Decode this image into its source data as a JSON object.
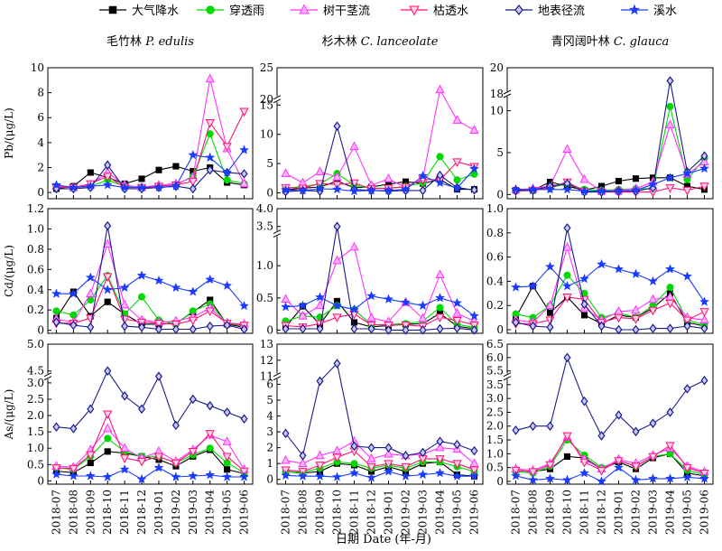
{
  "chart_data": {
    "type": "line",
    "legend": {
      "placement": "top",
      "entries": [
        {
          "key": "atm",
          "label": "大气降水",
          "color": "#000000",
          "marker": "square"
        },
        {
          "key": "thr",
          "label": "穿透雨",
          "color": "#00d800",
          "marker": "circle"
        },
        {
          "key": "stem",
          "label": "树干茎流",
          "color": "#ff33ff",
          "marker": "triangle-up"
        },
        {
          "key": "lit",
          "label": "枯透水",
          "color": "#ff1177",
          "marker": "triangle-down"
        },
        {
          "key": "sur",
          "label": "地表径流",
          "color": "#1a1a8c",
          "marker": "diamond"
        },
        {
          "key": "str",
          "label": "溪水",
          "color": "#1b3bff",
          "marker": "star"
        }
      ]
    },
    "x_categories": [
      "2018-07",
      "2018-08",
      "2018-09",
      "2018-10",
      "2018-11",
      "2018-12",
      "2019-01",
      "2019-02",
      "2019-03",
      "2019-04",
      "2019-05",
      "2019-06"
    ],
    "x_axis_label": "日期 Date (年-月)",
    "columns": [
      {
        "title_cn": "毛竹林",
        "title_latin": "P. edulis"
      },
      {
        "title_cn": "杉木林",
        "title_latin": "C. lanceolate"
      },
      {
        "title_cn": "青冈阔叶林",
        "title_latin": "C. glauca"
      }
    ],
    "rows": [
      {
        "ylabel": "Pb/(μg/L)"
      },
      {
        "ylabel": "Cd/(μg/L)"
      },
      {
        "ylabel": "As/(μg/L)"
      }
    ],
    "panels": [
      {
        "row": 0,
        "col": 0,
        "ylim": [
          -0.5,
          10
        ],
        "ticks": [
          0,
          2,
          4,
          6,
          8,
          10
        ],
        "tick_labels": [
          "0",
          "2",
          "4",
          "6",
          "8",
          "10"
        ],
        "series": {
          "atm": [
            0.3,
            0.5,
            1.6,
            1.2,
            0.7,
            1.1,
            1.8,
            2.1,
            1.7,
            2.0,
            0.8,
            0.6
          ],
          "thr": [
            0.5,
            0.4,
            0.5,
            1.0,
            0.5,
            0.4,
            0.5,
            0.6,
            1.3,
            4.7,
            1.0,
            0.7
          ],
          "stem": [
            0.5,
            0.4,
            0.6,
            1.6,
            0.6,
            0.4,
            0.6,
            0.7,
            1.2,
            9.1,
            3.5,
            0.7
          ],
          "lit": [
            0.4,
            0.4,
            0.7,
            1.3,
            0.4,
            0.4,
            0.5,
            0.6,
            0.9,
            5.6,
            3.7,
            6.5
          ],
          "sur": [
            0.3,
            0.3,
            0.4,
            2.2,
            0.3,
            0.3,
            0.4,
            0.5,
            0.3,
            1.8,
            1.6,
            1.5
          ],
          "str": [
            0.6,
            0.4,
            0.5,
            0.6,
            0.4,
            0.4,
            0.4,
            0.5,
            3.0,
            2.8,
            1.6,
            3.4
          ]
        }
      },
      {
        "row": 0,
        "col": 1,
        "ylim": [
          -1,
          25
        ],
        "ticks": [
          0,
          5,
          10,
          15,
          20,
          25
        ],
        "tick_labels": [
          "0",
          "5",
          "10",
          "15",
          "20",
          "25"
        ],
        "break": {
          "lo": 16,
          "hi": 20,
          "frac": 0.76
        },
        "series": {
          "atm": [
            0.5,
            0.8,
            1.0,
            2.0,
            0.9,
            1.0,
            1.5,
            1.9,
            1.6,
            2.3,
            0.6,
            0.6
          ],
          "thr": [
            0.8,
            1.1,
            1.5,
            3.3,
            1.3,
            0.8,
            0.8,
            1.1,
            1.7,
            6.2,
            2.2,
            3.2
          ],
          "stem": [
            3.3,
            1.7,
            3.6,
            2.7,
            7.9,
            1.3,
            2.4,
            0.9,
            2.4,
            21.5,
            12.4,
            10.7
          ],
          "lit": [
            0.9,
            0.8,
            1.6,
            1.4,
            1.7,
            0.7,
            0.8,
            1.0,
            2.3,
            2.2,
            5.3,
            4.5
          ],
          "sur": [
            0.2,
            0.4,
            0.3,
            11.4,
            0.6,
            0.4,
            0.3,
            0.4,
            0.4,
            3.0,
            0.9,
            0.5
          ],
          "str": [
            0.5,
            0.4,
            0.7,
            0.6,
            0.3,
            0.4,
            0.4,
            0.6,
            2.9,
            1.7,
            0.8,
            4.1
          ]
        }
      },
      {
        "row": 0,
        "col": 2,
        "ylim": [
          -0.5,
          20
        ],
        "ticks": [
          0,
          5,
          10,
          18,
          20
        ],
        "tick_labels": [
          "0",
          "5",
          "10",
          "18",
          "20"
        ],
        "break": {
          "lo": 12,
          "hi": 18,
          "frac": 0.8
        },
        "series": {
          "atm": [
            0.5,
            0.5,
            1.5,
            1.0,
            0.5,
            1.0,
            1.6,
            1.9,
            2.0,
            2.0,
            1.0,
            0.6
          ],
          "thr": [
            0.5,
            0.5,
            0.8,
            1.3,
            0.6,
            0.5,
            0.6,
            0.7,
            0.7,
            10.5,
            1.8,
            4.3
          ],
          "stem": [
            0.6,
            0.7,
            1.0,
            5.4,
            1.8,
            0.4,
            0.5,
            0.7,
            1.5,
            8.3,
            2.4,
            3.9
          ],
          "lit": [
            0.4,
            0.5,
            0.8,
            1.5,
            0.4,
            0.3,
            0.3,
            0.3,
            0.3,
            0.8,
            0.5,
            1.0
          ],
          "sur": [
            0.5,
            0.5,
            1.0,
            1.3,
            0.3,
            0.3,
            0.4,
            0.4,
            0.8,
            19.0,
            2.7,
            4.6
          ],
          "str": [
            0.6,
            0.6,
            0.6,
            0.6,
            0.4,
            0.4,
            0.4,
            0.5,
            1.2,
            2.0,
            2.5,
            3.1
          ]
        }
      },
      {
        "row": 1,
        "col": 0,
        "ylim": [
          -0.03,
          1.2
        ],
        "ticks": [
          0,
          0.2,
          0.4,
          0.6,
          0.8,
          1.0,
          1.2
        ],
        "tick_labels": [
          "0",
          "0.2",
          "0.4",
          "0.6",
          "0.8",
          "1.0",
          "1.2"
        ],
        "series": {
          "atm": [
            0.12,
            0.38,
            0.14,
            0.28,
            0.16,
            0.06,
            0.06,
            0.07,
            0.18,
            0.3,
            0.06,
            0.03
          ],
          "thr": [
            0.19,
            0.15,
            0.3,
            0.54,
            0.16,
            0.33,
            0.1,
            0.06,
            0.19,
            0.26,
            0.07,
            0.04
          ],
          "stem": [
            0.11,
            0.08,
            0.36,
            0.85,
            0.25,
            0.1,
            0.08,
            0.09,
            0.13,
            0.22,
            0.07,
            0.06
          ],
          "lit": [
            0.07,
            0.07,
            0.12,
            0.53,
            0.11,
            0.08,
            0.07,
            0.06,
            0.1,
            0.19,
            0.07,
            0.05
          ],
          "sur": [
            0.08,
            0.05,
            0.03,
            1.03,
            0.04,
            0.03,
            0.01,
            0.01,
            0.01,
            0.04,
            0.05,
            0.01
          ],
          "str": [
            0.36,
            0.36,
            0.52,
            0.4,
            0.42,
            0.54,
            0.49,
            0.42,
            0.38,
            0.5,
            0.44,
            0.24
          ]
        }
      },
      {
        "row": 1,
        "col": 1,
        "ylim": [
          -0.05,
          4.0
        ],
        "ticks": [
          0,
          0.5,
          1.0,
          3.5,
          4.0
        ],
        "tick_labels": [
          "0",
          "0.5",
          "1.0",
          "3.5",
          "4.0"
        ],
        "break": {
          "lo": 1.5,
          "hi": 3.3,
          "frac": 0.8
        },
        "series": {
          "atm": [
            0.05,
            0.37,
            0.09,
            0.45,
            0.12,
            0.05,
            0.07,
            0.09,
            0.1,
            0.26,
            0.06,
            0.02
          ],
          "thr": [
            0.14,
            0.22,
            0.2,
            0.38,
            0.32,
            0.08,
            0.09,
            0.1,
            0.14,
            0.35,
            0.09,
            0.04
          ],
          "stem": [
            0.48,
            0.22,
            0.38,
            1.08,
            1.29,
            0.19,
            0.13,
            0.43,
            0.18,
            0.86,
            0.26,
            0.14
          ],
          "lit": [
            0.07,
            0.05,
            0.1,
            0.2,
            0.25,
            0.08,
            0.08,
            0.08,
            0.06,
            0.2,
            0.15,
            0.08
          ],
          "sur": [
            0.02,
            0.02,
            0.02,
            3.5,
            0.02,
            0.02,
            0.0,
            0.0,
            0.0,
            0.02,
            0.03,
            0.0
          ],
          "str": [
            0.36,
            0.38,
            0.51,
            0.38,
            0.32,
            0.53,
            0.48,
            0.43,
            0.38,
            0.5,
            0.42,
            0.22
          ]
        }
      },
      {
        "row": 1,
        "col": 2,
        "ylim": [
          -0.03,
          1.0
        ],
        "ticks": [
          0,
          0.2,
          0.4,
          0.6,
          0.8,
          1.0
        ],
        "tick_labels": [
          "0",
          "0.2",
          "0.4",
          "0.6",
          "0.8",
          "1.0"
        ],
        "series": {
          "atm": [
            0.1,
            0.36,
            0.14,
            0.27,
            0.12,
            0.05,
            0.12,
            0.1,
            0.18,
            0.3,
            0.06,
            0.03
          ],
          "thr": [
            0.13,
            0.1,
            0.2,
            0.45,
            0.3,
            0.1,
            0.14,
            0.1,
            0.2,
            0.35,
            0.08,
            0.04
          ],
          "stem": [
            0.08,
            0.06,
            0.2,
            0.68,
            0.18,
            0.08,
            0.15,
            0.16,
            0.25,
            0.27,
            0.1,
            0.08
          ],
          "lit": [
            0.05,
            0.05,
            0.08,
            0.27,
            0.25,
            0.06,
            0.1,
            0.09,
            0.16,
            0.22,
            0.08,
            0.15
          ],
          "sur": [
            0.06,
            0.03,
            0.02,
            0.84,
            0.21,
            0.03,
            0.0,
            0.0,
            0.01,
            0.01,
            0.03,
            0.01
          ],
          "str": [
            0.35,
            0.36,
            0.52,
            0.36,
            0.42,
            0.54,
            0.5,
            0.46,
            0.4,
            0.5,
            0.44,
            0.23
          ]
        }
      },
      {
        "row": 2,
        "col": 0,
        "ylim": [
          -0.1,
          5.0
        ],
        "ticks": [
          0,
          0.5,
          1.0,
          1.5,
          2.0,
          2.5,
          3.0,
          4.5,
          5.0
        ],
        "tick_labels": [
          "0",
          "0.5",
          "1.0",
          "1.5",
          "2.0",
          "2.5",
          "3.0",
          "4.5",
          "5.0"
        ],
        "break": {
          "lo": 3.2,
          "hi": 4.4,
          "frac": 0.77
        },
        "series": {
          "atm": [
            0.3,
            0.25,
            0.55,
            0.9,
            0.85,
            0.75,
            0.65,
            0.45,
            0.75,
            0.95,
            0.35,
            0.22
          ],
          "thr": [
            0.4,
            0.35,
            0.75,
            1.3,
            0.9,
            0.75,
            0.75,
            0.55,
            0.8,
            1.0,
            0.55,
            0.25
          ],
          "stem": [
            0.45,
            0.42,
            0.95,
            1.6,
            1.0,
            0.7,
            0.9,
            0.6,
            0.95,
            1.4,
            1.2,
            0.35
          ],
          "lit": [
            0.4,
            0.38,
            0.8,
            2.05,
            0.7,
            0.6,
            0.75,
            0.55,
            0.9,
            1.45,
            0.75,
            0.3
          ],
          "sur": [
            1.65,
            1.6,
            2.2,
            4.5,
            2.6,
            2.2,
            3.2,
            1.7,
            2.5,
            2.3,
            2.1,
            1.9
          ],
          "str": [
            0.2,
            0.15,
            0.15,
            0.12,
            0.35,
            0.05,
            0.4,
            0.12,
            0.15,
            0.18,
            0.12,
            0.12
          ]
        }
      },
      {
        "row": 2,
        "col": 1,
        "ylim": [
          -0.3,
          13
        ],
        "ticks": [
          0,
          1,
          2,
          3,
          4,
          5,
          6,
          11,
          12,
          13
        ],
        "tick_labels": [
          "0",
          "1",
          "2",
          "3",
          "4",
          "5",
          "6",
          "11",
          "12",
          "13"
        ],
        "break": {
          "lo": 6.5,
          "hi": 11.0,
          "frac": 0.77
        },
        "series": {
          "atm": [
            0.5,
            0.4,
            0.5,
            1.0,
            0.9,
            0.5,
            0.8,
            0.5,
            1.0,
            1.1,
            0.3,
            0.2
          ],
          "thr": [
            0.5,
            0.45,
            0.7,
            1.1,
            1.0,
            0.7,
            0.9,
            0.7,
            1.1,
            1.1,
            0.8,
            0.5
          ],
          "stem": [
            1.2,
            1.0,
            1.5,
            1.8,
            2.4,
            1.3,
            1.6,
            1.5,
            1.6,
            2.0,
            1.9,
            1.0
          ],
          "lit": [
            0.6,
            0.5,
            0.9,
            1.4,
            1.8,
            0.8,
            1.0,
            0.8,
            1.3,
            1.3,
            1.0,
            0.6
          ],
          "sur": [
            2.9,
            1.5,
            6.2,
            11.8,
            2.1,
            2.0,
            2.0,
            1.5,
            1.7,
            2.4,
            2.2,
            1.8
          ],
          "str": [
            0.25,
            0.2,
            0.2,
            0.15,
            0.4,
            0.1,
            0.5,
            0.2,
            0.3,
            0.4,
            0.2,
            0.2
          ]
        }
      },
      {
        "row": 2,
        "col": 2,
        "ylim": [
          -0.1,
          6.5
        ],
        "ticks": [
          0,
          0.5,
          1.0,
          1.5,
          2.0,
          2.5,
          3.0,
          3.5,
          5.5,
          6.0,
          6.5
        ],
        "tick_labels": [
          "0",
          "0.5",
          "1.0",
          "1.5",
          "2.0",
          "2.5",
          "3.0",
          "3.5",
          "5.5",
          "6.0",
          "6.5"
        ],
        "break": {
          "lo": 3.8,
          "hi": 5.3,
          "frac": 0.77
        },
        "series": {
          "atm": [
            0.4,
            0.35,
            0.45,
            0.9,
            0.85,
            0.45,
            0.7,
            0.45,
            0.85,
            1.0,
            0.3,
            0.2
          ],
          "thr": [
            0.35,
            0.3,
            0.55,
            1.5,
            0.95,
            0.5,
            0.75,
            0.55,
            0.9,
            1.0,
            0.4,
            0.25
          ],
          "stem": [
            0.45,
            0.4,
            0.65,
            1.6,
            0.8,
            0.45,
            0.8,
            0.65,
            0.95,
            1.2,
            0.55,
            0.35
          ],
          "lit": [
            0.4,
            0.35,
            0.6,
            1.65,
            0.7,
            0.4,
            0.75,
            0.55,
            0.9,
            1.3,
            0.5,
            0.3
          ],
          "sur": [
            1.85,
            2.0,
            2.0,
            6.0,
            2.9,
            1.65,
            2.4,
            1.8,
            2.1,
            2.5,
            3.35,
            3.65
          ],
          "str": [
            0.2,
            0.05,
            0.1,
            0.05,
            0.3,
            0.0,
            0.5,
            0.05,
            0.1,
            0.1,
            0.15,
            0.1
          ]
        }
      }
    ]
  }
}
